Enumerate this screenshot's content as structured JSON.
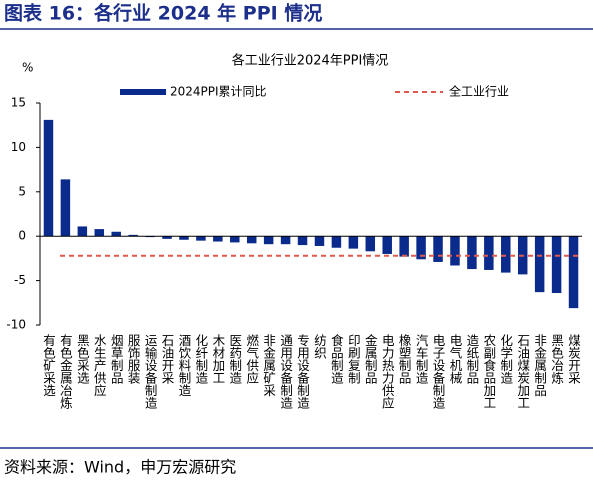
{
  "header": {
    "title": "图表 16：各行业 2024 年 PPI 情况"
  },
  "chart_data": {
    "type": "bar",
    "title": "各工业行业2024年PPI情况",
    "ylabel": "%",
    "categories": [
      "有色矿采选",
      "有色金属冶炼",
      "黑色采选",
      "水生产供应",
      "烟草制品",
      "服饰服装",
      "运输设备制造",
      "石油开采",
      "酒饮料制造",
      "化纤制造",
      "木材加工",
      "医药制造",
      "燃气供应",
      "非金属矿采",
      "通用设备制造",
      "专用设备制造",
      "纺织",
      "食品制造",
      "印刷复制",
      "金属制品",
      "电力热力供应",
      "橡塑制品",
      "汽车制造",
      "电子设备制造",
      "电气机械",
      "造纸制品",
      "农副食品加工",
      "化学制造",
      "石油煤炭加工",
      "非金属制品",
      "黑色冶炼",
      "煤炭开采"
    ],
    "series": [
      {
        "name": "2024PPI累计同比",
        "color": "#0a2a8c",
        "values": [
          13.1,
          6.4,
          1.1,
          0.8,
          0.5,
          0.15,
          -0.1,
          -0.3,
          -0.4,
          -0.5,
          -0.6,
          -0.7,
          -0.8,
          -0.9,
          -0.9,
          -1.0,
          -1.1,
          -1.3,
          -1.4,
          -1.7,
          -2.0,
          -2.3,
          -2.6,
          -2.9,
          -3.3,
          -3.7,
          -3.8,
          -4.1,
          -4.3,
          -6.3,
          -6.4,
          -8.1
        ]
      }
    ],
    "reference": {
      "name": "全工业行业",
      "value": -2.2,
      "color": "#e05a4e"
    },
    "ylim": [
      -10,
      15
    ],
    "yticks": [
      -10,
      -5,
      0,
      5,
      10,
      15
    ]
  },
  "footer": {
    "source": "资料来源：Wind，申万宏源研究"
  }
}
